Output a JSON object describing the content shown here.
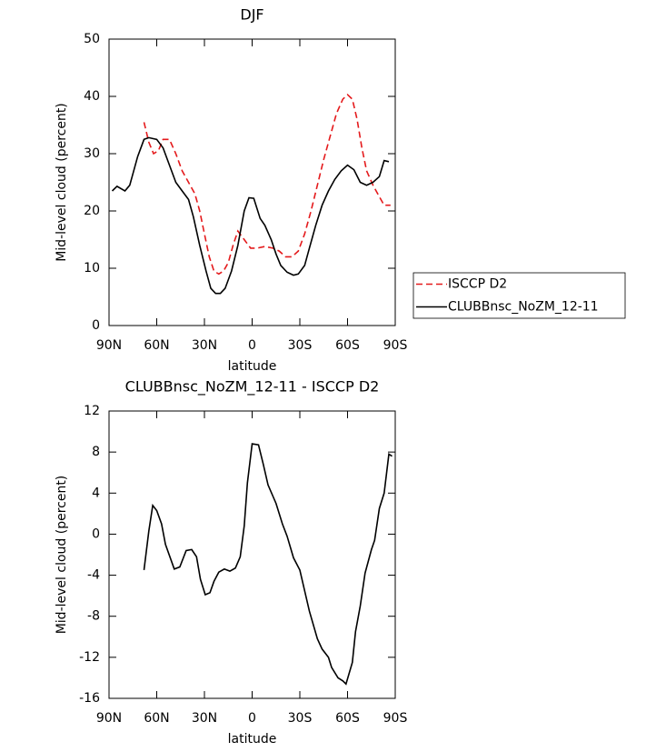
{
  "chart_data": [
    {
      "type": "line",
      "title": "DJF",
      "xlabel": "latitude",
      "ylabel": "Mid-level cloud (percent)",
      "xlim": [
        90,
        -90
      ],
      "ylim": [
        0,
        50
      ],
      "xticks": [
        {
          "value": 90,
          "label": "90N"
        },
        {
          "value": 60,
          "label": "60N"
        },
        {
          "value": 30,
          "label": "30N"
        },
        0,
        {
          "value": -30,
          "label": "30S"
        },
        {
          "value": -60,
          "label": "60S"
        },
        {
          "value": -90,
          "label": "90S"
        }
      ],
      "yticks": [
        0,
        10,
        20,
        30,
        40,
        50
      ],
      "legend": "outside-right",
      "series": [
        {
          "name": "ISCCP D2",
          "color": "#e41a1c",
          "dash": true,
          "x": [
            68,
            65,
            62,
            59,
            56,
            52,
            48,
            44,
            40,
            36,
            33,
            30,
            27,
            24,
            21,
            18,
            15,
            12,
            9,
            5,
            1,
            -3,
            -8,
            -13,
            -17,
            -21,
            -25,
            -29,
            -33,
            -37,
            -41,
            -45,
            -49,
            -53,
            -57,
            -60,
            -63,
            -66,
            -69,
            -72,
            -76,
            -80,
            -83,
            -87
          ],
          "values": [
            35.5,
            32,
            30,
            30.5,
            32.5,
            32.5,
            30,
            27,
            25,
            23,
            20,
            16,
            12,
            9.5,
            9,
            9.5,
            11,
            14,
            16.5,
            15,
            13.5,
            13.5,
            13.8,
            13.5,
            13,
            12,
            12,
            13,
            16,
            20,
            24.5,
            29,
            33,
            37,
            39.5,
            40.3,
            39.5,
            36,
            31,
            27,
            24.5,
            22.5,
            21,
            21
          ]
        },
        {
          "name": "CLUBBnsc_NoZM_12-11",
          "color": "#000000",
          "dash": false,
          "x": [
            88,
            85,
            80,
            77,
            72,
            68,
            65,
            60,
            56,
            52,
            48,
            44,
            40,
            37,
            33,
            29,
            26,
            23,
            20,
            17,
            13,
            9,
            5,
            2,
            -1,
            -5,
            -8,
            -12,
            -15,
            -18,
            -22,
            -26,
            -29,
            -33,
            -36,
            -40,
            -44,
            -48,
            -52,
            -56,
            -60,
            -64,
            -68,
            -72,
            -76,
            -80,
            -83,
            -86
          ],
          "values": [
            23.5,
            24.3,
            23.5,
            24.5,
            29.5,
            32.5,
            32.8,
            32.5,
            31,
            28,
            25,
            23.5,
            22,
            19,
            14,
            9.5,
            6.5,
            5.6,
            5.6,
            6.5,
            9.5,
            14,
            20,
            22.3,
            22.2,
            18.7,
            17.5,
            15,
            12.5,
            10.5,
            9.3,
            8.8,
            9,
            10.5,
            13.5,
            17.5,
            21,
            23.5,
            25.5,
            27,
            28,
            27.2,
            25,
            24.5,
            25,
            26,
            28.8,
            28.6
          ]
        }
      ]
    },
    {
      "type": "line",
      "title": "CLUBBnsc_NoZM_12-11 - ISCCP D2",
      "xlabel": "latitude",
      "ylabel": "Mid-level cloud (percent)",
      "xlim": [
        90,
        -90
      ],
      "ylim": [
        -16,
        12
      ],
      "xticks": [
        {
          "value": 90,
          "label": "90N"
        },
        {
          "value": 60,
          "label": "60N"
        },
        {
          "value": 30,
          "label": "30N"
        },
        0,
        {
          "value": -30,
          "label": "30S"
        },
        {
          "value": -60,
          "label": "60S"
        },
        {
          "value": -90,
          "label": "90S"
        }
      ],
      "yticks": [
        -16,
        -12,
        -8,
        -4,
        0,
        4,
        8,
        12
      ],
      "series": [
        {
          "color": "#000000",
          "dash": false,
          "x": [
            68,
            65,
            62.5,
            60,
            57,
            54.5,
            49,
            45.5,
            41.5,
            38,
            35,
            32.5,
            29.5,
            26.5,
            24,
            21,
            17.5,
            14,
            10.5,
            7.5,
            5,
            3,
            0,
            -4,
            -7,
            -10,
            -15,
            -19,
            -22,
            -26,
            -30,
            -36,
            -41,
            -44,
            -48,
            -50,
            -54,
            -57,
            -59,
            -63,
            -65,
            -68,
            -71,
            -75,
            -77,
            -80,
            -83,
            -86,
            -88
          ],
          "values": [
            -3.5,
            0.3,
            2.8,
            2.3,
            1,
            -1,
            -3.4,
            -3.2,
            -1.6,
            -1.5,
            -2.2,
            -4.4,
            -5.9,
            -5.7,
            -4.6,
            -3.7,
            -3.4,
            -3.6,
            -3.3,
            -2.2,
            0.8,
            5,
            8.8,
            8.7,
            6.8,
            4.8,
            3,
            1,
            -0.2,
            -2.3,
            -3.5,
            -7.5,
            -10.2,
            -11.2,
            -12,
            -13,
            -14,
            -14.3,
            -14.6,
            -12.5,
            -9.5,
            -7,
            -3.8,
            -1.5,
            -0.6,
            2.5,
            4,
            7.8,
            7.6
          ]
        }
      ]
    }
  ]
}
